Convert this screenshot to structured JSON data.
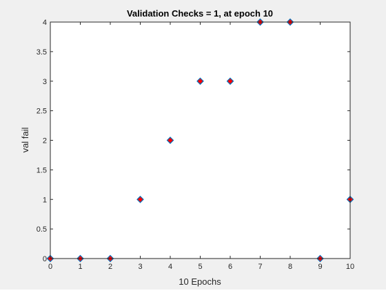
{
  "chart_data": {
    "type": "scatter",
    "title": "Validation Checks = 1, at epoch 10",
    "xlabel": "10 Epochs",
    "ylabel": "val fail",
    "xlim": [
      0,
      10
    ],
    "ylim": [
      0,
      4
    ],
    "xticks": [
      0,
      1,
      2,
      3,
      4,
      5,
      6,
      7,
      8,
      9,
      10
    ],
    "yticks": [
      0,
      0.5,
      1,
      1.5,
      2,
      2.5,
      3,
      3.5,
      4
    ],
    "xtick_labels": [
      "0",
      "1",
      "2",
      "3",
      "4",
      "5",
      "6",
      "7",
      "8",
      "9",
      "10"
    ],
    "ytick_labels": [
      "0",
      "0.5",
      "1",
      "1.5",
      "2",
      "2.5",
      "3",
      "3.5",
      "4"
    ],
    "grid": false,
    "series": [
      {
        "marker": "diamond",
        "edge_color": "#0072bd",
        "face_color": "#ff0000",
        "points": [
          {
            "x": 0,
            "y": 0
          },
          {
            "x": 1,
            "y": 0
          },
          {
            "x": 2,
            "y": 0
          },
          {
            "x": 3,
            "y": 1
          },
          {
            "x": 4,
            "y": 2
          },
          {
            "x": 5,
            "y": 3
          },
          {
            "x": 6,
            "y": 3
          },
          {
            "x": 7,
            "y": 4
          },
          {
            "x": 8,
            "y": 4
          },
          {
            "x": 9,
            "y": 0
          },
          {
            "x": 10,
            "y": 1
          }
        ]
      }
    ],
    "colors": {
      "figure_background": "#f0f0f0",
      "axes_background": "#ffffff",
      "axes_color": "#262626"
    }
  }
}
